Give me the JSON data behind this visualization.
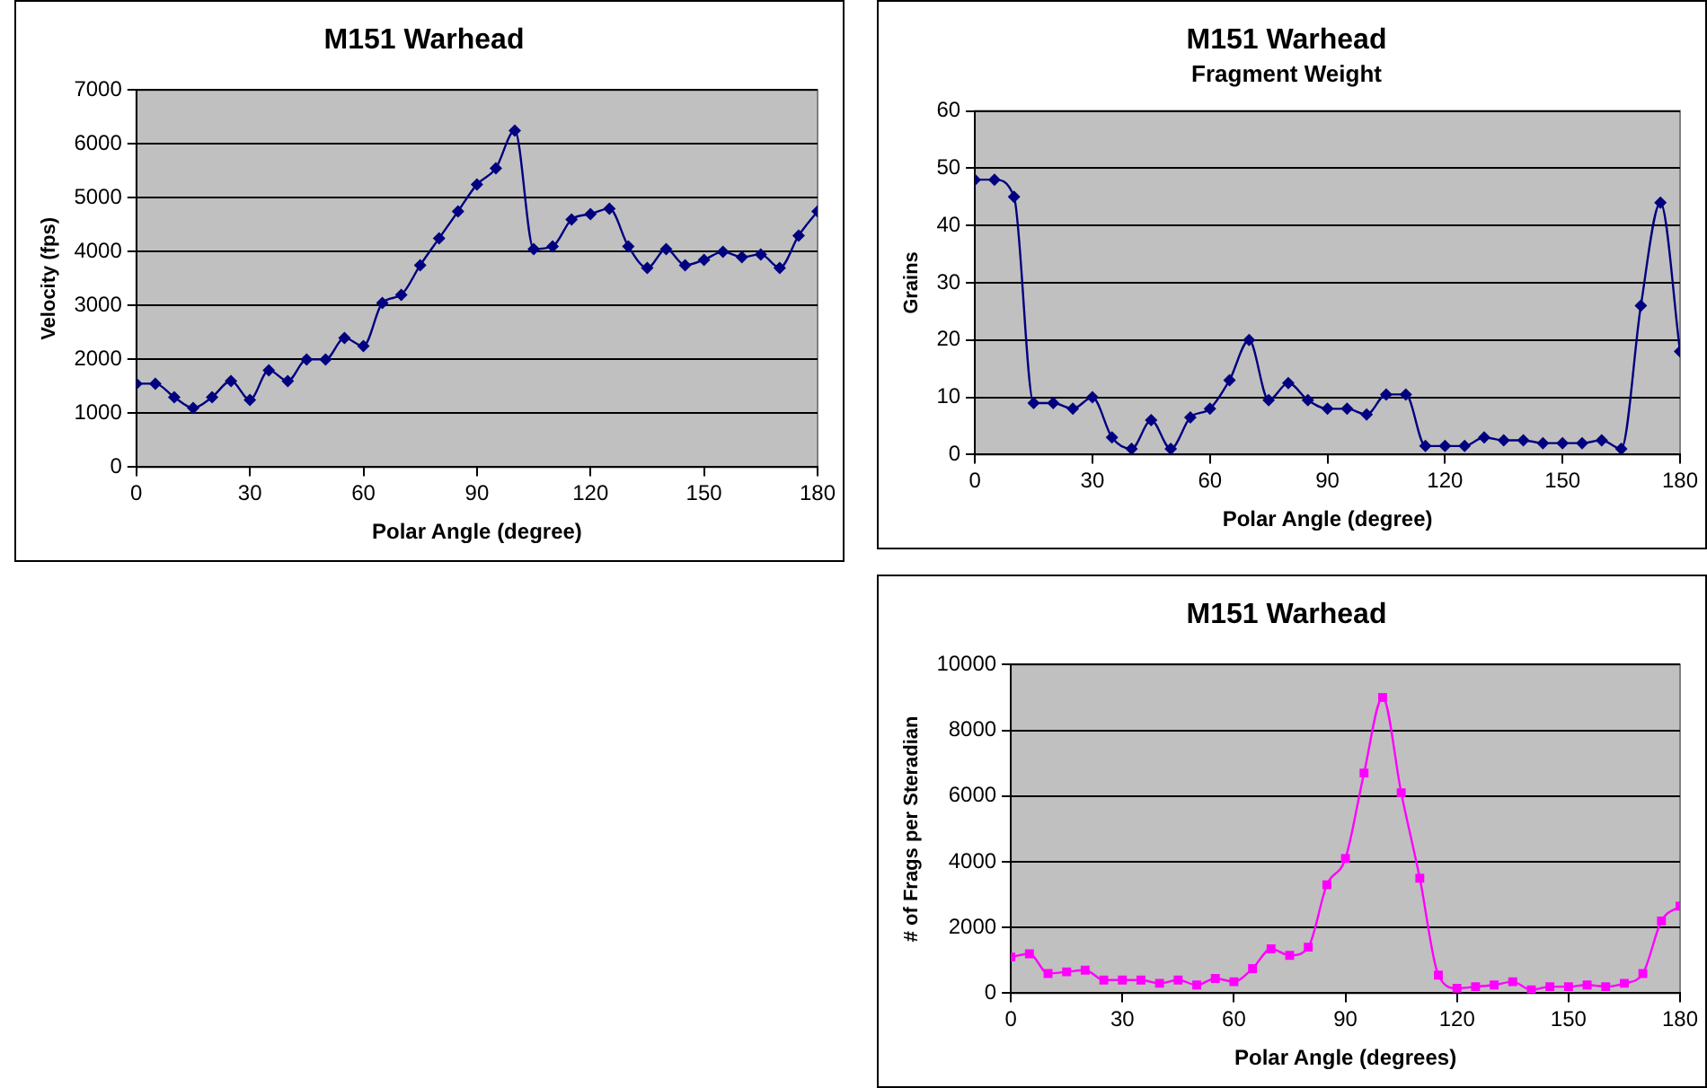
{
  "chart_data": [
    {
      "type": "line",
      "title": "M151 Warhead",
      "xlabel": "Polar Angle (degree)",
      "ylabel": "Velocity (fps)",
      "x": [
        0,
        5,
        10,
        15,
        20,
        25,
        30,
        35,
        40,
        45,
        50,
        55,
        60,
        65,
        70,
        75,
        80,
        85,
        90,
        95,
        100,
        105,
        110,
        115,
        120,
        125,
        130,
        135,
        140,
        145,
        150,
        155,
        160,
        165,
        170,
        175,
        180
      ],
      "series": [
        {
          "color": "#000080",
          "values": [
            1550,
            1550,
            1300,
            1100,
            1300,
            1600,
            1250,
            1800,
            1600,
            2000,
            2000,
            2400,
            2250,
            3050,
            3200,
            3750,
            4250,
            4750,
            5250,
            5550,
            6250,
            4050,
            4100,
            4600,
            4700,
            4800,
            4100,
            3700,
            4050,
            3750,
            3850,
            4000,
            3900,
            3950,
            3700,
            4300,
            4750
          ]
        }
      ],
      "xlim": [
        0,
        180
      ],
      "xticks": [
        0,
        30,
        60,
        90,
        120,
        150,
        180
      ],
      "ylim": [
        0,
        7000
      ],
      "yticks": [
        0,
        1000,
        2000,
        3000,
        4000,
        5000,
        6000,
        7000
      ],
      "grid": "y",
      "legend": false,
      "marker": "diamond",
      "line_style": "solid"
    },
    {
      "type": "line",
      "title": "M151 Warhead",
      "subtitle": "Fragment Weight",
      "xlabel": "Polar Angle (degree)",
      "ylabel": "Grains",
      "x": [
        0,
        5,
        10,
        15,
        20,
        25,
        30,
        35,
        40,
        45,
        50,
        55,
        60,
        65,
        70,
        75,
        80,
        85,
        90,
        95,
        100,
        105,
        110,
        115,
        120,
        125,
        130,
        135,
        140,
        145,
        150,
        155,
        160,
        165,
        170,
        175,
        180
      ],
      "series": [
        {
          "color": "#000080",
          "values": [
            48,
            48,
            45,
            9,
            9,
            8,
            10,
            3,
            1,
            6,
            1,
            6.5,
            8,
            13,
            20,
            9.5,
            12.5,
            9.5,
            8,
            8,
            7,
            10.5,
            10.5,
            1.5,
            1.5,
            1.5,
            3,
            2.5,
            2.5,
            2,
            2,
            2,
            2.5,
            1,
            26,
            44,
            18
          ]
        }
      ],
      "xlim": [
        0,
        180
      ],
      "xticks": [
        0,
        30,
        60,
        90,
        120,
        150,
        180
      ],
      "ylim": [
        0,
        60
      ],
      "yticks": [
        0,
        10,
        20,
        30,
        40,
        50,
        60
      ],
      "grid": "y",
      "legend": false,
      "marker": "diamond",
      "line_style": "solid"
    },
    {
      "type": "line",
      "title": "M151 Warhead",
      "xlabel": "Polar Angle (degrees)",
      "ylabel": "# of Frags per Steradian",
      "x": [
        0,
        5,
        10,
        15,
        20,
        25,
        30,
        35,
        40,
        45,
        50,
        55,
        60,
        65,
        70,
        75,
        80,
        85,
        90,
        95,
        100,
        105,
        110,
        115,
        120,
        125,
        130,
        135,
        140,
        145,
        150,
        155,
        160,
        165,
        170,
        175,
        180
      ],
      "series": [
        {
          "color": "#ff00ff",
          "values": [
            1100,
            1200,
            600,
            650,
            700,
            400,
            400,
            400,
            300,
            400,
            250,
            450,
            350,
            750,
            1350,
            1150,
            1400,
            3300,
            4100,
            6700,
            9000,
            6100,
            3500,
            550,
            150,
            200,
            250,
            350,
            100,
            200,
            200,
            250,
            200,
            300,
            600,
            2200,
            2650
          ]
        }
      ],
      "xlim": [
        0,
        180
      ],
      "xticks": [
        0,
        30,
        60,
        90,
        120,
        150,
        180
      ],
      "ylim": [
        0,
        10000
      ],
      "yticks": [
        0,
        2000,
        4000,
        6000,
        8000,
        10000
      ],
      "grid": "y",
      "legend": false,
      "marker": "square",
      "line_style": "solid"
    }
  ]
}
